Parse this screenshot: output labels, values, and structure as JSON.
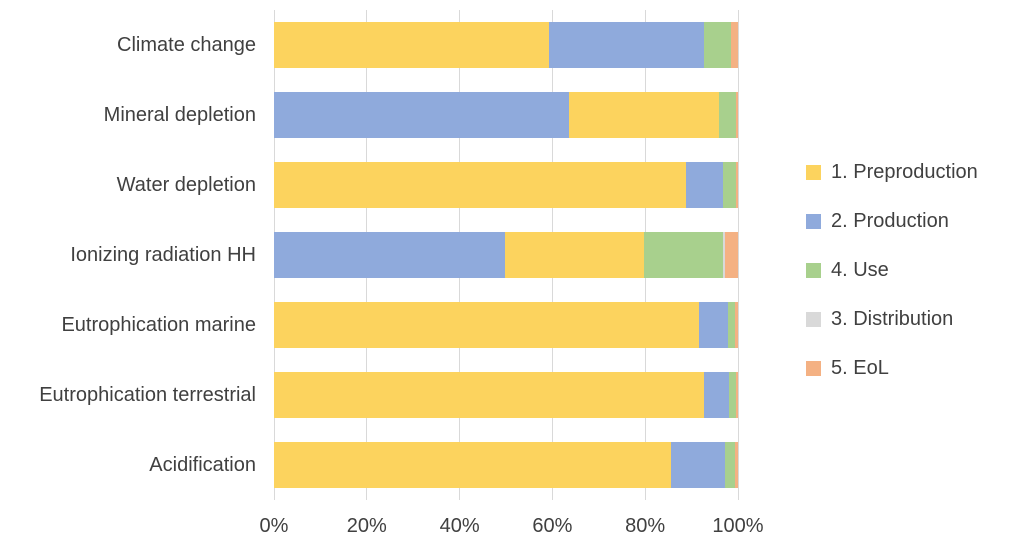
{
  "chart_data": {
    "type": "bar",
    "orientation": "horizontal",
    "stacked": true,
    "unit": "percent",
    "title": "",
    "xlabel": "",
    "ylabel": "",
    "xlim": [
      0,
      100
    ],
    "grid": true,
    "legend_position": "right",
    "gridline_color": "#d9d9d9",
    "text_color": "#404040",
    "x_ticks": [
      {
        "label": "0%",
        "value": 0
      },
      {
        "label": "20%",
        "value": 20
      },
      {
        "label": "40%",
        "value": 40
      },
      {
        "label": "60%",
        "value": 60
      },
      {
        "label": "80%",
        "value": 80
      },
      {
        "label": "100%",
        "value": 100
      }
    ],
    "series_legend": [
      {
        "label": "1. Preproduction",
        "color": "#fcd35e"
      },
      {
        "label": "2. Production",
        "color": "#8faadc"
      },
      {
        "label": "4. Use",
        "color": "#a8d08d"
      },
      {
        "label": "3. Distribution",
        "color": "#d9d9d9"
      },
      {
        "label": "5. EoL",
        "color": "#f4b183"
      }
    ],
    "categories": [
      "Climate change",
      "Mineral depletion",
      "Water depletion",
      "Ionizing radiation HH",
      "Eutrophication marine",
      "Eutrophication terrestrial",
      "Acidification"
    ],
    "rows": [
      {
        "category": "Climate change",
        "segments": [
          {
            "series": "1. Preproduction",
            "value": 59.3
          },
          {
            "series": "2. Production",
            "value": 33.4
          },
          {
            "series": "4. Use",
            "value": 5.8
          },
          {
            "series": "5. EoL",
            "value": 1.5
          }
        ]
      },
      {
        "category": "Mineral depletion",
        "segments": [
          {
            "series": "2. Production",
            "value": 63.6
          },
          {
            "series": "1. Preproduction",
            "value": 32.2
          },
          {
            "series": "4. Use",
            "value": 3.8
          },
          {
            "series": "5. EoL",
            "value": 0.4
          }
        ]
      },
      {
        "category": "Water depletion",
        "segments": [
          {
            "series": "1. Preproduction",
            "value": 88.8
          },
          {
            "series": "2. Production",
            "value": 8.0
          },
          {
            "series": "4. Use",
            "value": 2.7
          },
          {
            "series": "5. EoL",
            "value": 0.5
          }
        ]
      },
      {
        "category": "Ionizing radiation HH",
        "segments": [
          {
            "series": "2. Production",
            "value": 49.8
          },
          {
            "series": "1. Preproduction",
            "value": 30.0
          },
          {
            "series": "4. Use",
            "value": 17.0
          },
          {
            "series": "3. Distribution",
            "value": 0.3
          },
          {
            "series": "5. EoL",
            "value": 2.9
          }
        ]
      },
      {
        "category": "Eutrophication marine",
        "segments": [
          {
            "series": "1. Preproduction",
            "value": 91.7
          },
          {
            "series": "2. Production",
            "value": 6.1
          },
          {
            "series": "4. Use",
            "value": 1.6
          },
          {
            "series": "5. EoL",
            "value": 0.6
          }
        ]
      },
      {
        "category": "Eutrophication terrestrial",
        "segments": [
          {
            "series": "1. Preproduction",
            "value": 92.6
          },
          {
            "series": "2. Production",
            "value": 5.4
          },
          {
            "series": "4. Use",
            "value": 1.6
          },
          {
            "series": "5. EoL",
            "value": 0.4
          }
        ]
      },
      {
        "category": "Acidification",
        "segments": [
          {
            "series": "1. Preproduction",
            "value": 85.6
          },
          {
            "series": "2. Production",
            "value": 11.5
          },
          {
            "series": "4. Use",
            "value": 2.2
          },
          {
            "series": "5. EoL",
            "value": 0.7
          }
        ]
      }
    ]
  }
}
